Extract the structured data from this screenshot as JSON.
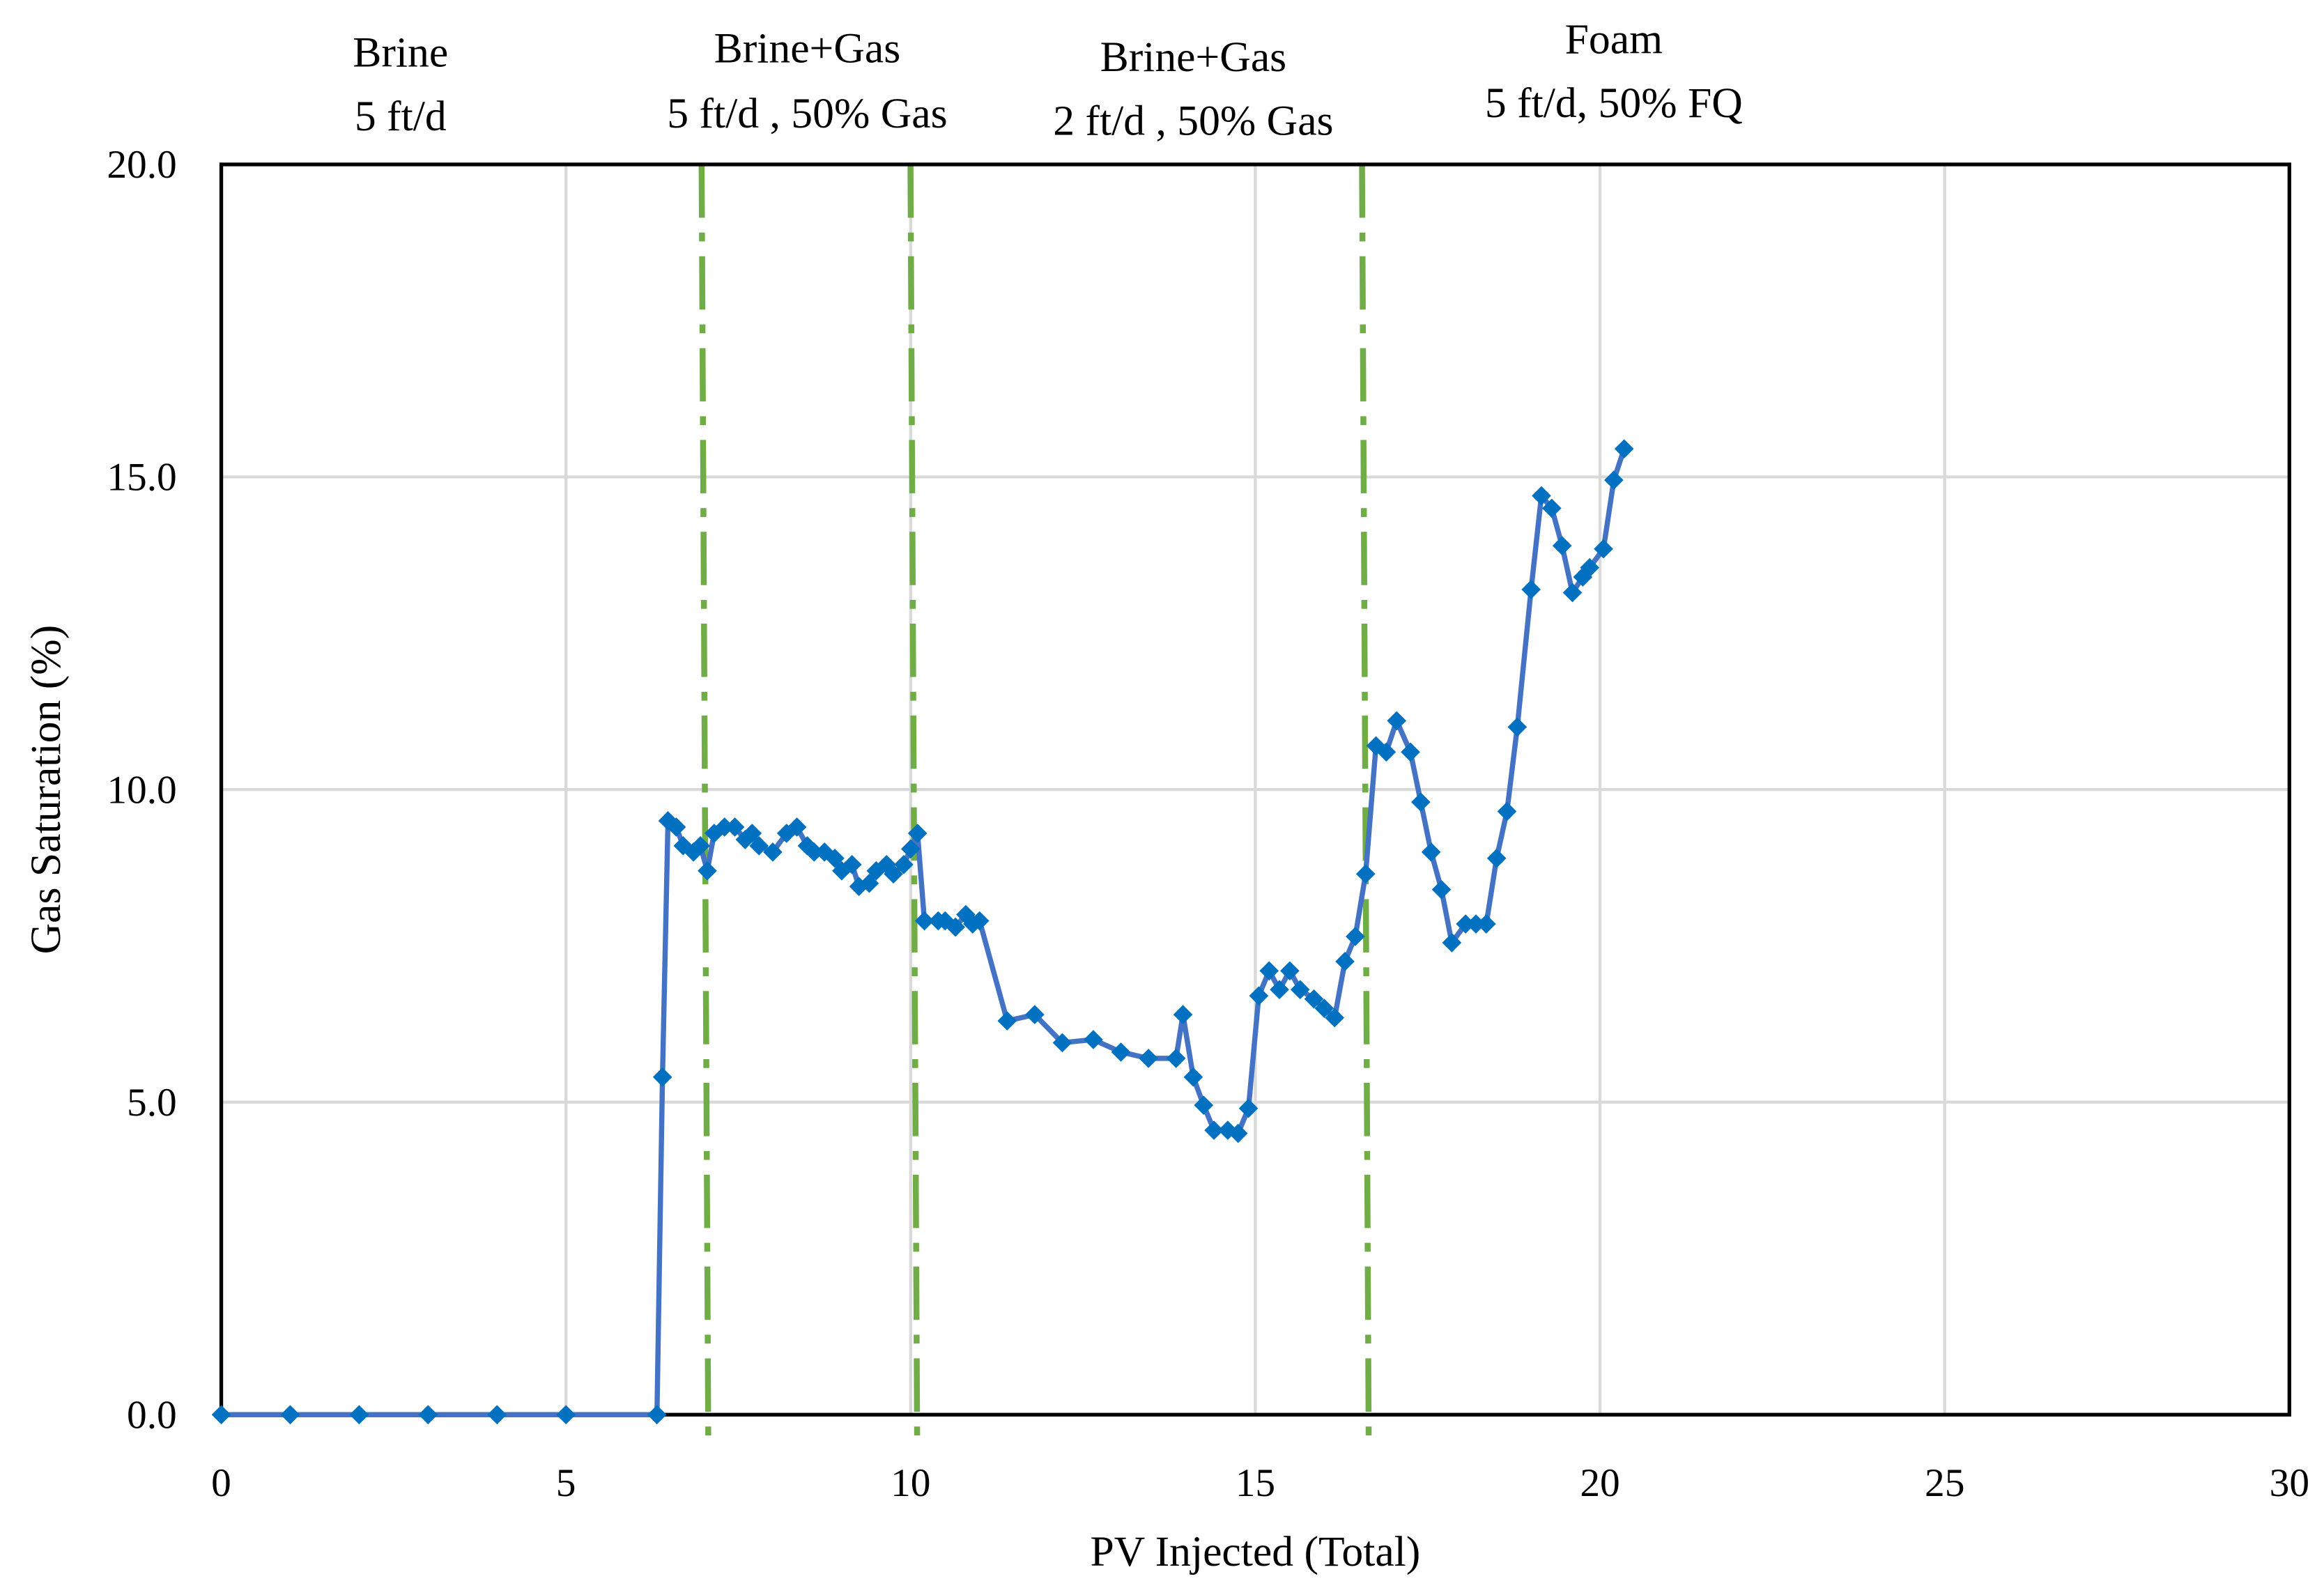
{
  "chart_data": {
    "type": "line",
    "title": "",
    "xlabel": "PV Injected (Total)",
    "ylabel": "Gas Saturation (%)",
    "xlim": [
      0,
      30
    ],
    "ylim": [
      0,
      20
    ],
    "xticks": [
      "0",
      "5",
      "10",
      "15",
      "20",
      "25",
      "30"
    ],
    "yticks": [
      "0.0",
      "5.0",
      "10.0",
      "15.0",
      "20.0"
    ],
    "grid": true,
    "marker": "diamond",
    "colors": {
      "series": "#0070C0",
      "line": "#4472C4",
      "phase_lines": "#70AD47",
      "grid": "#D9D9D9"
    },
    "phase_boundaries": [
      7.0,
      10.03,
      16.58
    ],
    "annotations": [
      {
        "lines": [
          "Brine",
          "5 ft/d"
        ],
        "x": 2.6
      },
      {
        "lines": [
          "Brine+Gas",
          "5 ft/d , 50% Gas"
        ],
        "x": 8.5
      },
      {
        "lines": [
          "Brine+Gas",
          "2 ft/d , 50% Gas"
        ],
        "x": 14.1
      },
      {
        "lines": [
          "Foam",
          "5 ft/d, 50% FQ"
        ],
        "x": 20.2
      }
    ],
    "series": [
      {
        "x": [
          0,
          1,
          2,
          3,
          4,
          5,
          6.32,
          6.4,
          6.48,
          6.6,
          6.7,
          6.85,
          6.95,
          7.05,
          7.15,
          7.3,
          7.45,
          7.6,
          7.7,
          7.8,
          8.0,
          8.2,
          8.35,
          8.5,
          8.6,
          8.75,
          8.9,
          9.0,
          9.15,
          9.25,
          9.4,
          9.5,
          9.65,
          9.75,
          9.9,
          10.0,
          10.1,
          10.2,
          10.4,
          10.5,
          10.65,
          10.8,
          10.9,
          11.0,
          11.4,
          11.8,
          12.2,
          12.65,
          13.05,
          13.45,
          13.85,
          13.95,
          14.1,
          14.25,
          14.4,
          14.6,
          14.75,
          14.9,
          15.05,
          15.2,
          15.35,
          15.5,
          15.65,
          15.85,
          16.0,
          16.15,
          16.3,
          16.45,
          16.6,
          16.75,
          16.9,
          17.05,
          17.25,
          17.4,
          17.55,
          17.7,
          17.85,
          18.05,
          18.2,
          18.35,
          18.5,
          18.65,
          18.8,
          19.0,
          19.15,
          19.3,
          19.45,
          19.6,
          19.75,
          19.85,
          20.05,
          20.2,
          20.35
        ],
        "y": [
          0,
          0,
          0,
          0,
          0,
          0,
          0,
          5.4,
          9.5,
          9.4,
          9.1,
          9.0,
          9.1,
          8.7,
          9.3,
          9.4,
          9.4,
          9.2,
          9.3,
          9.1,
          9.0,
          9.3,
          9.4,
          9.1,
          9.0,
          9.0,
          8.9,
          8.7,
          8.8,
          8.45,
          8.5,
          8.7,
          8.8,
          8.65,
          8.8,
          9.05,
          9.3,
          7.9,
          7.9,
          7.9,
          7.8,
          8.0,
          7.85,
          7.9,
          6.3,
          6.4,
          5.95,
          6.0,
          5.8,
          5.7,
          5.7,
          6.4,
          5.4,
          4.95,
          4.55,
          4.55,
          4.5,
          4.9,
          6.7,
          7.1,
          6.8,
          7.1,
          6.8,
          6.65,
          6.5,
          6.35,
          7.25,
          7.65,
          8.65,
          10.7,
          10.6,
          11.1,
          10.6,
          9.8,
          9.0,
          8.4,
          7.55,
          7.85,
          7.85,
          7.85,
          8.9,
          9.65,
          11.0,
          13.2,
          14.7,
          14.5,
          13.9,
          13.15,
          13.4,
          13.55,
          13.85,
          14.95,
          15.45
        ]
      }
    ]
  }
}
